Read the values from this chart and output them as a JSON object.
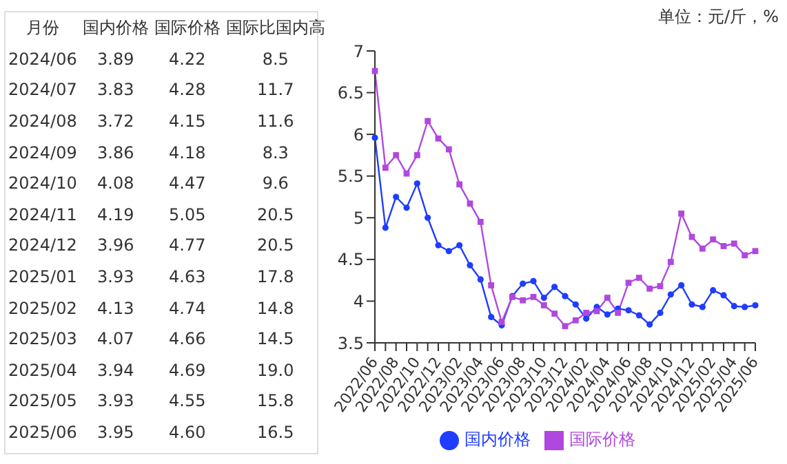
{
  "chart_data": [
    {
      "type": "other",
      "xlabel": "月份",
      "categories": [
        "2024/06",
        "2024/07",
        "2024/08",
        "2024/09",
        "2024/10",
        "2024/11",
        "2024/12",
        "2025/01",
        "2025/02",
        "2025/03",
        "2025/04",
        "2025/05",
        "2025/06"
      ],
      "series": [
        {
          "name": "国内价格",
          "values": [
            3.89,
            3.83,
            3.72,
            3.86,
            4.08,
            4.19,
            3.96,
            3.93,
            4.13,
            4.07,
            3.94,
            3.93,
            3.95
          ],
          "value_labels": [
            "3.89",
            "3.83",
            "3.72",
            "3.86",
            "4.08",
            "4.19",
            "3.96",
            "3.93",
            "4.13",
            "4.07",
            "3.94",
            "3.93",
            "3.95"
          ]
        },
        {
          "name": "国际价格",
          "values": [
            4.22,
            4.28,
            4.15,
            4.18,
            4.47,
            5.05,
            4.77,
            4.63,
            4.74,
            4.66,
            4.69,
            4.55,
            4.6
          ],
          "value_labels": [
            "4.22",
            "4.28",
            "4.15",
            "4.18",
            "4.47",
            "5.05",
            "4.77",
            "4.63",
            "4.74",
            "4.66",
            "4.69",
            "4.55",
            "4.60"
          ]
        },
        {
          "name": "国际比国内高",
          "values": [
            8.5,
            11.7,
            11.6,
            8.3,
            9.6,
            20.5,
            20.5,
            17.8,
            14.8,
            14.5,
            19.0,
            15.8,
            16.5
          ],
          "value_labels": [
            "8.5",
            "11.7",
            "11.6",
            "8.3",
            "9.6",
            "20.5",
            "20.5",
            "17.8",
            "14.8",
            "14.5",
            "19.0",
            "15.8",
            "16.5"
          ]
        }
      ]
    },
    {
      "type": "line",
      "annotations": [
        "单位：元/斤，%"
      ],
      "categories": [
        "2022/06",
        null,
        "2022/08",
        null,
        "2022/10",
        null,
        "2022/12",
        null,
        "2023/02",
        null,
        "2023/04",
        null,
        "2023/06",
        null,
        "2023/08",
        null,
        "2023/10",
        null,
        "2023/12",
        null,
        "2024/02",
        null,
        "2024/04",
        null,
        "2024/06",
        null,
        "2024/08",
        null,
        "2024/10",
        null,
        "2024/12",
        null,
        "2025/02",
        null,
        "2025/04",
        null,
        "2025/06"
      ],
      "series": [
        {
          "name": "国内价格",
          "color": "#1f3cff",
          "marker": "circle",
          "values": [
            5.96,
            4.88,
            5.25,
            5.12,
            5.41,
            5.0,
            4.67,
            4.6,
            4.67,
            4.43,
            4.26,
            3.81,
            3.71,
            4.06,
            4.21,
            4.24,
            4.04,
            4.17,
            4.06,
            3.96,
            3.79,
            3.93,
            3.84,
            3.91,
            3.89,
            3.83,
            3.72,
            3.86,
            4.08,
            4.19,
            3.96,
            3.93,
            4.13,
            4.07,
            3.94,
            3.93,
            3.95
          ]
        },
        {
          "name": "国际价格",
          "color": "#b048e0",
          "marker": "square",
          "values": [
            6.76,
            5.6,
            5.75,
            5.53,
            5.75,
            6.16,
            5.95,
            5.82,
            5.4,
            5.17,
            4.95,
            4.19,
            3.75,
            4.05,
            4.01,
            4.05,
            3.95,
            3.85,
            3.7,
            3.77,
            3.86,
            3.88,
            4.04,
            3.86,
            4.22,
            4.28,
            4.15,
            4.18,
            4.47,
            5.05,
            4.77,
            4.63,
            4.74,
            4.66,
            4.69,
            4.55,
            4.6
          ]
        }
      ],
      "ylim": [
        3.5,
        7
      ],
      "yticks": [
        3.5,
        4,
        4.5,
        5,
        5.5,
        6,
        6.5,
        7
      ],
      "grid": false,
      "legend": "bottom"
    }
  ]
}
